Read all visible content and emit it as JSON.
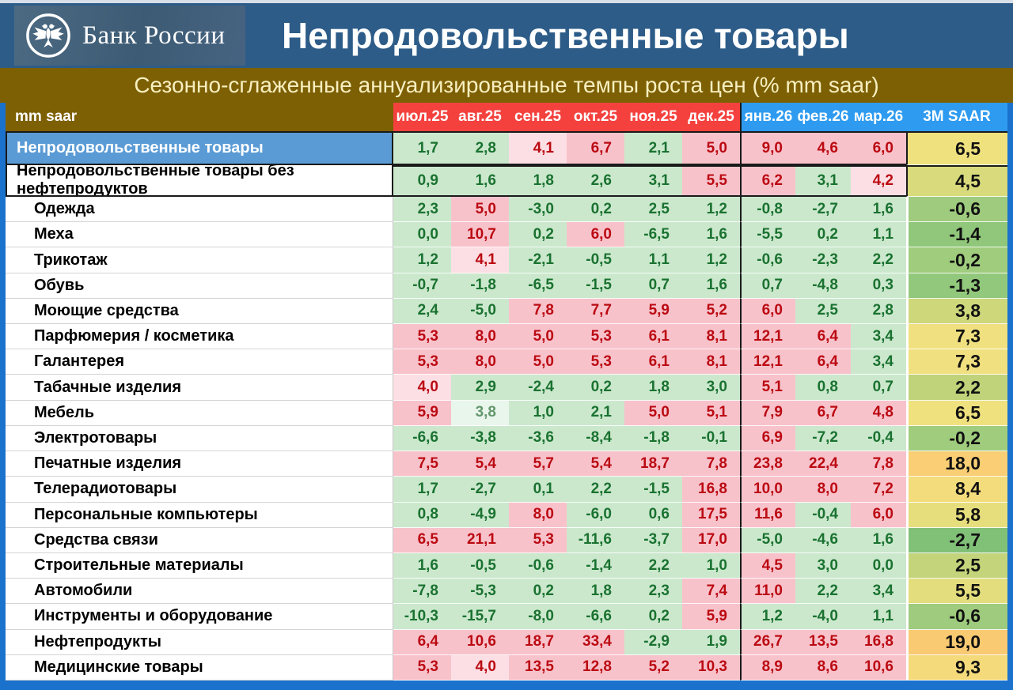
{
  "header": {
    "bank_name": "Банк России",
    "title": "Непродовольственные товары"
  },
  "subtitle": "Сезонно-сглаженные аннуализированные темпы роста цен (% mm saar)",
  "table": {
    "corner_label": "mm saar",
    "month_columns": [
      "июл.25",
      "авг.25",
      "сен.25",
      "окт.25",
      "ноя.25",
      "дек.25"
    ],
    "future_columns": [
      "янв.26",
      "фев.26",
      "мар.26"
    ],
    "saar_label": "3M SAAR",
    "rows": [
      {
        "label": "Непродовольственные товары",
        "style": "total1",
        "values": [
          "1,7",
          "2,8",
          "4,1",
          "6,7",
          "2,1",
          "5,0",
          "9,0",
          "4,6",
          "6,0"
        ],
        "shades": [
          "g",
          "g",
          "lp",
          "p",
          "g",
          "p",
          "p",
          "p",
          "p"
        ],
        "saar": "6,5",
        "saar_color": "#efe17e"
      },
      {
        "label": "Непродовольственные товары без нефтепродуктов",
        "style": "total2",
        "values": [
          "0,9",
          "1,6",
          "1,8",
          "2,6",
          "3,1",
          "5,5",
          "6,2",
          "3,1",
          "4,2"
        ],
        "shades": [
          "g",
          "g",
          "g",
          "g",
          "g",
          "p",
          "p",
          "g",
          "lp"
        ],
        "saar": "4,5",
        "saar_color": "#d9da7c"
      },
      {
        "label": "Одежда",
        "style": "prod",
        "values": [
          "2,3",
          "5,0",
          "-3,0",
          "0,2",
          "2,5",
          "1,2",
          "-0,8",
          "-2,7",
          "1,6"
        ],
        "shades": [
          "g",
          "p",
          "g",
          "g",
          "g",
          "g",
          "g",
          "g",
          "g"
        ],
        "saar": "-0,6",
        "saar_color": "#9ecb7d"
      },
      {
        "label": "Меха",
        "style": "prod",
        "values": [
          "0,0",
          "10,7",
          "0,2",
          "6,0",
          "-6,5",
          "1,6",
          "-5,5",
          "0,2",
          "1,1"
        ],
        "shades": [
          "g",
          "p",
          "g",
          "p",
          "g",
          "g",
          "g",
          "g",
          "g"
        ],
        "saar": "-1,4",
        "saar_color": "#90c77a"
      },
      {
        "label": "Трикотаж",
        "style": "prod",
        "values": [
          "1,2",
          "4,1",
          "-2,1",
          "-0,5",
          "1,1",
          "1,2",
          "-0,6",
          "-2,3",
          "2,2"
        ],
        "shades": [
          "g",
          "lp",
          "g",
          "g",
          "g",
          "g",
          "g",
          "g",
          "g"
        ],
        "saar": "-0,2",
        "saar_color": "#a0cc7d"
      },
      {
        "label": "Обувь",
        "style": "prod",
        "values": [
          "-0,7",
          "-1,8",
          "-6,5",
          "-1,5",
          "0,7",
          "1,6",
          "0,7",
          "-4,8",
          "0,3"
        ],
        "shades": [
          "g",
          "g",
          "g",
          "g",
          "g",
          "g",
          "g",
          "g",
          "g"
        ],
        "saar": "-1,3",
        "saar_color": "#92c87b"
      },
      {
        "label": "Моющие средства",
        "style": "prod",
        "values": [
          "2,4",
          "-5,0",
          "7,8",
          "7,7",
          "5,9",
          "5,2",
          "6,0",
          "2,5",
          "2,8"
        ],
        "shades": [
          "g",
          "g",
          "p",
          "p",
          "p",
          "p",
          "p",
          "g",
          "g"
        ],
        "saar": "3,8",
        "saar_color": "#cfd77b"
      },
      {
        "label": "Парфюмерия / косметика",
        "style": "prod",
        "values": [
          "5,3",
          "8,0",
          "5,0",
          "5,3",
          "6,1",
          "8,1",
          "12,1",
          "6,4",
          "3,4"
        ],
        "shades": [
          "p",
          "p",
          "p",
          "p",
          "p",
          "p",
          "p",
          "p",
          "g"
        ],
        "saar": "7,3",
        "saar_color": "#f0e07f"
      },
      {
        "label": "Галантерея",
        "style": "prod",
        "values": [
          "5,3",
          "8,0",
          "5,0",
          "5,3",
          "6,1",
          "8,1",
          "12,1",
          "6,4",
          "3,4"
        ],
        "shades": [
          "p",
          "p",
          "p",
          "p",
          "p",
          "p",
          "p",
          "p",
          "g"
        ],
        "saar": "7,3",
        "saar_color": "#f0e07f"
      },
      {
        "label": "Табачные изделия",
        "style": "prod",
        "values": [
          "4,0",
          "2,9",
          "-2,4",
          "0,2",
          "1,8",
          "3,0",
          "5,1",
          "0,8",
          "0,7"
        ],
        "shades": [
          "lp",
          "g",
          "g",
          "g",
          "g",
          "g",
          "p",
          "g",
          "g"
        ],
        "saar": "2,2",
        "saar_color": "#c0d37a"
      },
      {
        "label": "Мебель",
        "style": "prod",
        "values": [
          "5,9",
          "3,8",
          "1,0",
          "2,1",
          "5,0",
          "5,1",
          "7,9",
          "6,7",
          "4,8"
        ],
        "shades": [
          "p",
          "pg",
          "g",
          "g",
          "p",
          "p",
          "p",
          "p",
          "p"
        ],
        "saar": "6,5",
        "saar_color": "#efe17e"
      },
      {
        "label": "Электротовары",
        "style": "prod",
        "values": [
          "-6,6",
          "-3,8",
          "-3,6",
          "-8,4",
          "-1,8",
          "-0,1",
          "6,9",
          "-7,2",
          "-0,4"
        ],
        "shades": [
          "g",
          "g",
          "g",
          "g",
          "g",
          "g",
          "p",
          "g",
          "g"
        ],
        "saar": "-0,2",
        "saar_color": "#a0cc7d"
      },
      {
        "label": "Печатные изделия",
        "style": "prod",
        "values": [
          "7,5",
          "5,4",
          "5,7",
          "5,4",
          "18,7",
          "7,8",
          "23,8",
          "22,4",
          "7,8"
        ],
        "shades": [
          "p",
          "p",
          "p",
          "p",
          "p",
          "p",
          "p",
          "p",
          "p"
        ],
        "saar": "18,0",
        "saar_color": "#f9ce74"
      },
      {
        "label": "Телерадиотовары",
        "style": "prod",
        "values": [
          "1,7",
          "-2,7",
          "0,1",
          "2,2",
          "-1,5",
          "16,8",
          "10,0",
          "8,0",
          "7,2"
        ],
        "shades": [
          "g",
          "g",
          "g",
          "g",
          "g",
          "p",
          "p",
          "p",
          "p"
        ],
        "saar": "8,4",
        "saar_color": "#f3dc7c"
      },
      {
        "label": "Персональные компьютеры",
        "style": "prod",
        "values": [
          "0,8",
          "-4,9",
          "8,0",
          "-6,0",
          "0,6",
          "17,5",
          "11,6",
          "-0,4",
          "6,0"
        ],
        "shades": [
          "g",
          "g",
          "p",
          "g",
          "g",
          "p",
          "p",
          "g",
          "p"
        ],
        "saar": "5,8",
        "saar_color": "#e6de7d"
      },
      {
        "label": "Средства связи",
        "style": "prod",
        "values": [
          "6,5",
          "21,1",
          "5,3",
          "-11,6",
          "-3,7",
          "17,0",
          "-5,0",
          "-4,6",
          "1,6"
        ],
        "shades": [
          "p",
          "p",
          "p",
          "g",
          "g",
          "p",
          "g",
          "g",
          "g"
        ],
        "saar": "-2,7",
        "saar_color": "#81c077"
      },
      {
        "label": "Строительные материалы",
        "style": "prod",
        "values": [
          "1,6",
          "-0,5",
          "-0,6",
          "-1,4",
          "2,2",
          "1,0",
          "4,5",
          "3,0",
          "0,0"
        ],
        "shades": [
          "g",
          "g",
          "g",
          "g",
          "g",
          "g",
          "p",
          "g",
          "g"
        ],
        "saar": "2,5",
        "saar_color": "#c3d47b"
      },
      {
        "label": "Автомобили",
        "style": "prod",
        "values": [
          "-7,8",
          "-5,3",
          "0,2",
          "1,8",
          "2,3",
          "7,4",
          "11,0",
          "2,2",
          "3,4"
        ],
        "shades": [
          "g",
          "g",
          "g",
          "g",
          "g",
          "p",
          "p",
          "g",
          "g"
        ],
        "saar": "5,5",
        "saar_color": "#e3dd7d"
      },
      {
        "label": "Инструменты и оборудование",
        "style": "prod",
        "values": [
          "-10,3",
          "-15,7",
          "-8,0",
          "-6,6",
          "0,2",
          "5,9",
          "1,2",
          "-4,0",
          "1,1"
        ],
        "shades": [
          "g",
          "g",
          "g",
          "g",
          "g",
          "p",
          "g",
          "g",
          "g"
        ],
        "saar": "-0,6",
        "saar_color": "#9ecb7d"
      },
      {
        "label": "Нефтепродукты",
        "style": "prod",
        "values": [
          "6,4",
          "10,6",
          "18,7",
          "33,4",
          "-2,9",
          "1,9",
          "26,7",
          "13,5",
          "16,8"
        ],
        "shades": [
          "p",
          "p",
          "p",
          "p",
          "g",
          "g",
          "p",
          "p",
          "p"
        ],
        "saar": "19,0",
        "saar_color": "#f9ca72"
      },
      {
        "label": "Медицинские товары",
        "style": "prod",
        "values": [
          "5,3",
          "4,0",
          "13,5",
          "12,8",
          "5,2",
          "10,3",
          "8,9",
          "8,6",
          "10,6"
        ],
        "shades": [
          "p",
          "lp",
          "p",
          "p",
          "p",
          "p",
          "p",
          "p",
          "p"
        ],
        "saar": "9,3",
        "saar_color": "#f4da7b"
      }
    ]
  },
  "colors": {
    "title_bar": "#2d5c88",
    "olive_band": "#7d6004",
    "subtitle_text": "#f8efc0",
    "header_red": "#f4413e",
    "header_blue": "#2e9bf0",
    "total_row_blue": "#5b9bd5",
    "frame_blue": "#1a72cc",
    "cell_green": "#cbe8cd",
    "cell_green_text": "#1a7230",
    "cell_pink": "#f8c2cb",
    "cell_pink_text": "#bb0a12",
    "cell_light_pink": "#fcdfe4",
    "cell_pale_green": "#e9f6ec"
  },
  "chart_data": {
    "type": "heatmap",
    "title": "Непродовольственные товары",
    "subtitle": "Сезонно-сглаженные аннуализированные темпы роста цен (% mm saar)",
    "columns": [
      "июл.25",
      "авг.25",
      "сен.25",
      "окт.25",
      "ноя.25",
      "дек.25",
      "янв.26",
      "фев.26",
      "мар.26",
      "3M SAAR"
    ],
    "rows": [
      {
        "name": "Непродовольственные товары",
        "values": [
          1.7,
          2.8,
          4.1,
          6.7,
          2.1,
          5.0,
          9.0,
          4.6,
          6.0
        ],
        "saar_3m": 6.5
      },
      {
        "name": "Непродовольственные товары без нефтепродуктов",
        "values": [
          0.9,
          1.6,
          1.8,
          2.6,
          3.1,
          5.5,
          6.2,
          3.1,
          4.2
        ],
        "saar_3m": 4.5
      },
      {
        "name": "Одежда",
        "values": [
          2.3,
          5.0,
          -3.0,
          0.2,
          2.5,
          1.2,
          -0.8,
          -2.7,
          1.6
        ],
        "saar_3m": -0.6
      },
      {
        "name": "Меха",
        "values": [
          0.0,
          10.7,
          0.2,
          6.0,
          -6.5,
          1.6,
          -5.5,
          0.2,
          1.1
        ],
        "saar_3m": -1.4
      },
      {
        "name": "Трикотаж",
        "values": [
          1.2,
          4.1,
          -2.1,
          -0.5,
          1.1,
          1.2,
          -0.6,
          -2.3,
          2.2
        ],
        "saar_3m": -0.2
      },
      {
        "name": "Обувь",
        "values": [
          -0.7,
          -1.8,
          -6.5,
          -1.5,
          0.7,
          1.6,
          0.7,
          -4.8,
          0.3
        ],
        "saar_3m": -1.3
      },
      {
        "name": "Моющие средства",
        "values": [
          2.4,
          -5.0,
          7.8,
          7.7,
          5.9,
          5.2,
          6.0,
          2.5,
          2.8
        ],
        "saar_3m": 3.8
      },
      {
        "name": "Парфюмерия / косметика",
        "values": [
          5.3,
          8.0,
          5.0,
          5.3,
          6.1,
          8.1,
          12.1,
          6.4,
          3.4
        ],
        "saar_3m": 7.3
      },
      {
        "name": "Галантерея",
        "values": [
          5.3,
          8.0,
          5.0,
          5.3,
          6.1,
          8.1,
          12.1,
          6.4,
          3.4
        ],
        "saar_3m": 7.3
      },
      {
        "name": "Табачные изделия",
        "values": [
          4.0,
          2.9,
          -2.4,
          0.2,
          1.8,
          3.0,
          5.1,
          0.8,
          0.7
        ],
        "saar_3m": 2.2
      },
      {
        "name": "Мебель",
        "values": [
          5.9,
          3.8,
          1.0,
          2.1,
          5.0,
          5.1,
          7.9,
          6.7,
          4.8
        ],
        "saar_3m": 6.5
      },
      {
        "name": "Электротовары",
        "values": [
          -6.6,
          -3.8,
          -3.6,
          -8.4,
          -1.8,
          -0.1,
          6.9,
          -7.2,
          -0.4
        ],
        "saar_3m": -0.2
      },
      {
        "name": "Печатные изделия",
        "values": [
          7.5,
          5.4,
          5.7,
          5.4,
          18.7,
          7.8,
          23.8,
          22.4,
          7.8
        ],
        "saar_3m": 18.0
      },
      {
        "name": "Телерадиотовары",
        "values": [
          1.7,
          -2.7,
          0.1,
          2.2,
          -1.5,
          16.8,
          10.0,
          8.0,
          7.2
        ],
        "saar_3m": 8.4
      },
      {
        "name": "Персональные компьютеры",
        "values": [
          0.8,
          -4.9,
          8.0,
          -6.0,
          0.6,
          17.5,
          11.6,
          -0.4,
          6.0
        ],
        "saar_3m": 5.8
      },
      {
        "name": "Средства связи",
        "values": [
          6.5,
          21.1,
          5.3,
          -11.6,
          -3.7,
          17.0,
          -5.0,
          -4.6,
          1.6
        ],
        "saar_3m": -2.7
      },
      {
        "name": "Строительные материалы",
        "values": [
          1.6,
          -0.5,
          -0.6,
          -1.4,
          2.2,
          1.0,
          4.5,
          3.0,
          0.0
        ],
        "saar_3m": 2.5
      },
      {
        "name": "Автомобили",
        "values": [
          -7.8,
          -5.3,
          0.2,
          1.8,
          2.3,
          7.4,
          11.0,
          2.2,
          3.4
        ],
        "saar_3m": 5.5
      },
      {
        "name": "Инструменты и оборудование",
        "values": [
          -10.3,
          -15.7,
          -8.0,
          -6.6,
          0.2,
          5.9,
          1.2,
          -4.0,
          1.1
        ],
        "saar_3m": -0.6
      },
      {
        "name": "Нефтепродукты",
        "values": [
          6.4,
          10.6,
          18.7,
          33.4,
          -2.9,
          1.9,
          26.7,
          13.5,
          16.8
        ],
        "saar_3m": 19.0
      },
      {
        "name": "Медицинские товары",
        "values": [
          5.3,
          4.0,
          13.5,
          12.8,
          5.2,
          10.3,
          8.9,
          8.6,
          10.6
        ],
        "saar_3m": 9.3
      }
    ],
    "color_legend": "green = low / below ~4% saar, pink = elevated, 3M SAAR column green→yellow→orange gradient",
    "layout": {
      "grid": false,
      "value_decimal_separator": ","
    }
  }
}
